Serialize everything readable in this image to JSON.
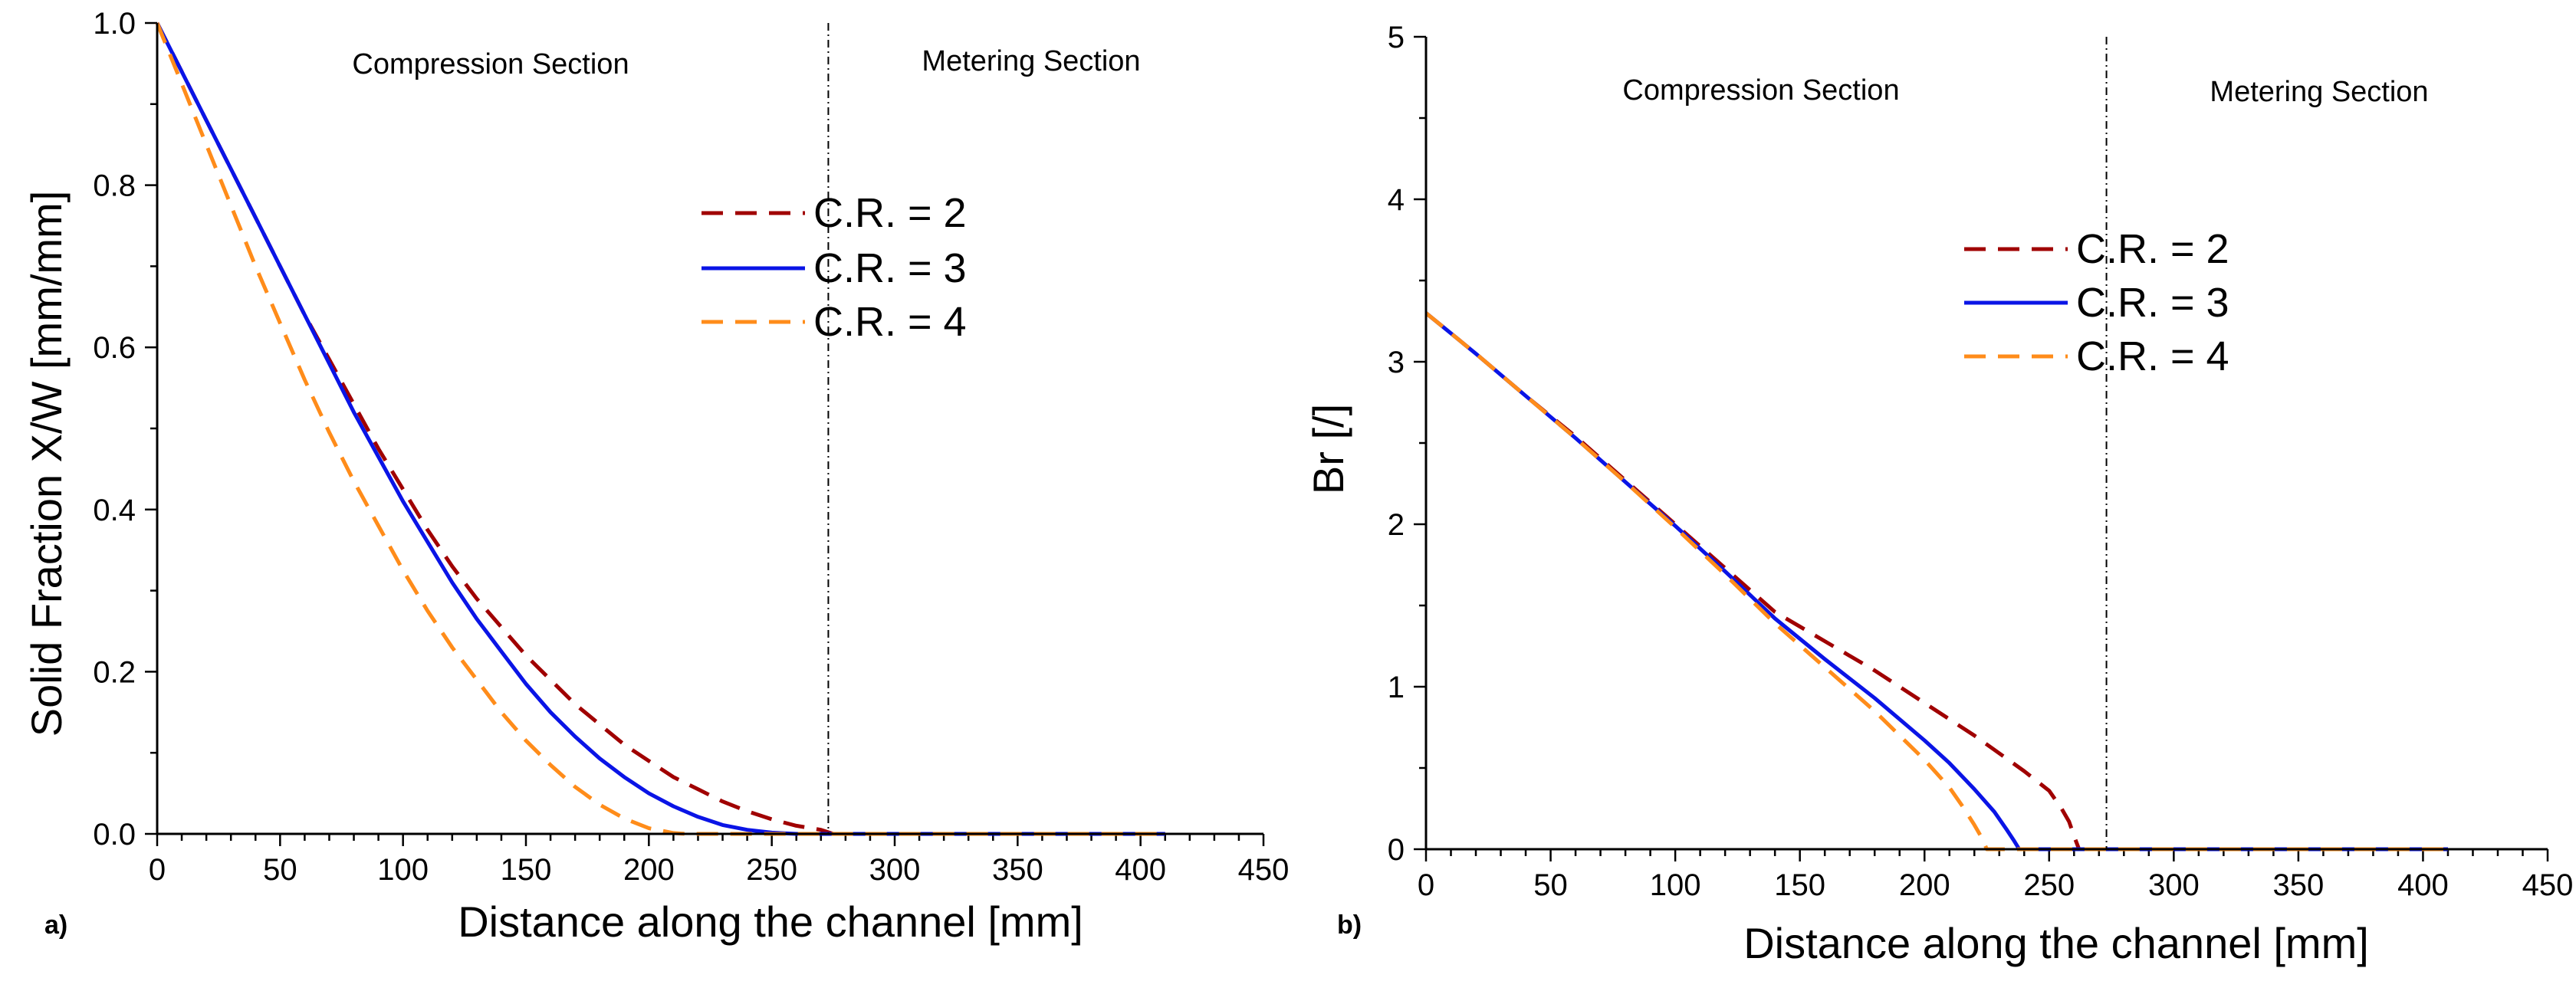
{
  "colors": {
    "cr2": "#a00000",
    "cr3": "#0a14e6",
    "cr4": "#ff8c1a",
    "axis": "#000000"
  },
  "chart_data": [
    {
      "panel": "a)",
      "type": "line",
      "xlabel": "Distance along the channel [mm]",
      "ylabel": "Solid Fraction X/W [mm/mm]",
      "xlim": [
        0,
        450
      ],
      "ylim": [
        0,
        1.0
      ],
      "xticks": [
        "0",
        "50",
        "100",
        "150",
        "200",
        "250",
        "300",
        "350",
        "400",
        "450"
      ],
      "yticks": [
        "0.0",
        "0.2",
        "0.4",
        "0.6",
        "0.8",
        "1.0"
      ],
      "section_divider_x": 273,
      "section_labels": [
        "Compression Section",
        "Metering Section"
      ],
      "legend_position": "center",
      "series": [
        {
          "name": "C.R. = 2",
          "style": "dashed",
          "color_key": "cr2",
          "x": [
            0,
            10,
            20,
            30,
            40,
            50,
            60,
            70,
            80,
            90,
            100,
            110,
            120,
            130,
            140,
            150,
            160,
            170,
            180,
            190,
            200,
            210,
            220,
            230,
            240,
            250,
            260,
            270,
            275,
            300,
            350,
            410
          ],
          "y": [
            1.0,
            0.94,
            0.88,
            0.82,
            0.76,
            0.7,
            0.64,
            0.585,
            0.53,
            0.475,
            0.425,
            0.375,
            0.33,
            0.29,
            0.255,
            0.22,
            0.19,
            0.16,
            0.135,
            0.11,
            0.09,
            0.07,
            0.055,
            0.04,
            0.028,
            0.018,
            0.01,
            0.005,
            0.0,
            0.0,
            0.0,
            0.0
          ]
        },
        {
          "name": "C.R. = 3",
          "style": "solid",
          "color_key": "cr3",
          "x": [
            0,
            10,
            20,
            30,
            40,
            50,
            60,
            70,
            80,
            90,
            100,
            110,
            120,
            130,
            140,
            150,
            160,
            170,
            180,
            190,
            200,
            210,
            220,
            230,
            240,
            250,
            260,
            265,
            275,
            300,
            350,
            410
          ],
          "y": [
            1.0,
            0.94,
            0.88,
            0.82,
            0.76,
            0.7,
            0.64,
            0.58,
            0.52,
            0.465,
            0.41,
            0.36,
            0.31,
            0.265,
            0.225,
            0.185,
            0.15,
            0.12,
            0.093,
            0.07,
            0.05,
            0.034,
            0.021,
            0.011,
            0.005,
            0.0015,
            0.0,
            0.0,
            0.0,
            0.0,
            0.0,
            0.0
          ]
        },
        {
          "name": "C.R. = 4",
          "style": "dashed",
          "color_key": "cr4",
          "x": [
            0,
            10,
            20,
            30,
            40,
            50,
            60,
            70,
            80,
            90,
            100,
            110,
            120,
            130,
            140,
            150,
            160,
            170,
            180,
            190,
            200,
            210,
            215,
            230,
            250,
            275,
            300,
            350,
            410
          ],
          "y": [
            1.0,
            0.925,
            0.85,
            0.775,
            0.7,
            0.63,
            0.56,
            0.495,
            0.435,
            0.38,
            0.325,
            0.275,
            0.23,
            0.19,
            0.15,
            0.115,
            0.085,
            0.058,
            0.036,
            0.019,
            0.007,
            0.001,
            0.0,
            0.0,
            0.0,
            0.0,
            0.0,
            0.0,
            0.0
          ]
        }
      ]
    },
    {
      "panel": "b)",
      "type": "line",
      "xlabel": "Distance along the channel [mm]",
      "ylabel": "Br [/]",
      "xlim": [
        0,
        450
      ],
      "ylim": [
        0,
        5
      ],
      "xticks": [
        "0",
        "50",
        "100",
        "150",
        "200",
        "250",
        "300",
        "350",
        "400",
        "450"
      ],
      "yticks": [
        "0",
        "1",
        "2",
        "3",
        "4",
        "5"
      ],
      "section_divider_x": 273,
      "section_labels": [
        "Compression Section",
        "Metering Section"
      ],
      "legend_position": "center",
      "series": [
        {
          "name": "C.R. = 2",
          "style": "dashed",
          "color_key": "cr2",
          "x": [
            0,
            20,
            40,
            60,
            80,
            100,
            120,
            140,
            160,
            180,
            200,
            220,
            240,
            250,
            255,
            258,
            260,
            262,
            300,
            350,
            410
          ],
          "y": [
            3.3,
            3.05,
            2.79,
            2.54,
            2.27,
            2.0,
            1.73,
            1.46,
            1.28,
            1.1,
            0.9,
            0.7,
            0.48,
            0.36,
            0.25,
            0.17,
            0.08,
            0.0,
            0.0,
            0.0,
            0.0
          ]
        },
        {
          "name": "C.R. = 3",
          "style": "solid",
          "color_key": "cr3",
          "x": [
            0,
            20,
            40,
            60,
            80,
            100,
            120,
            140,
            160,
            180,
            200,
            210,
            220,
            228,
            233,
            236,
            238,
            300,
            350,
            410
          ],
          "y": [
            3.3,
            3.05,
            2.79,
            2.53,
            2.26,
            1.99,
            1.71,
            1.42,
            1.17,
            0.93,
            0.67,
            0.53,
            0.37,
            0.23,
            0.12,
            0.05,
            0.0,
            0.0,
            0.0,
            0.0
          ]
        },
        {
          "name": "C.R. = 4",
          "style": "dashed",
          "color_key": "cr4",
          "x": [
            0,
            20,
            40,
            60,
            80,
            100,
            120,
            140,
            160,
            180,
            200,
            210,
            215,
            220,
            223,
            225,
            300,
            350,
            410
          ],
          "y": [
            3.3,
            3.05,
            2.79,
            2.53,
            2.26,
            1.98,
            1.69,
            1.39,
            1.12,
            0.85,
            0.55,
            0.38,
            0.27,
            0.15,
            0.07,
            0.0,
            0.0,
            0.0,
            0.0
          ]
        }
      ]
    }
  ]
}
